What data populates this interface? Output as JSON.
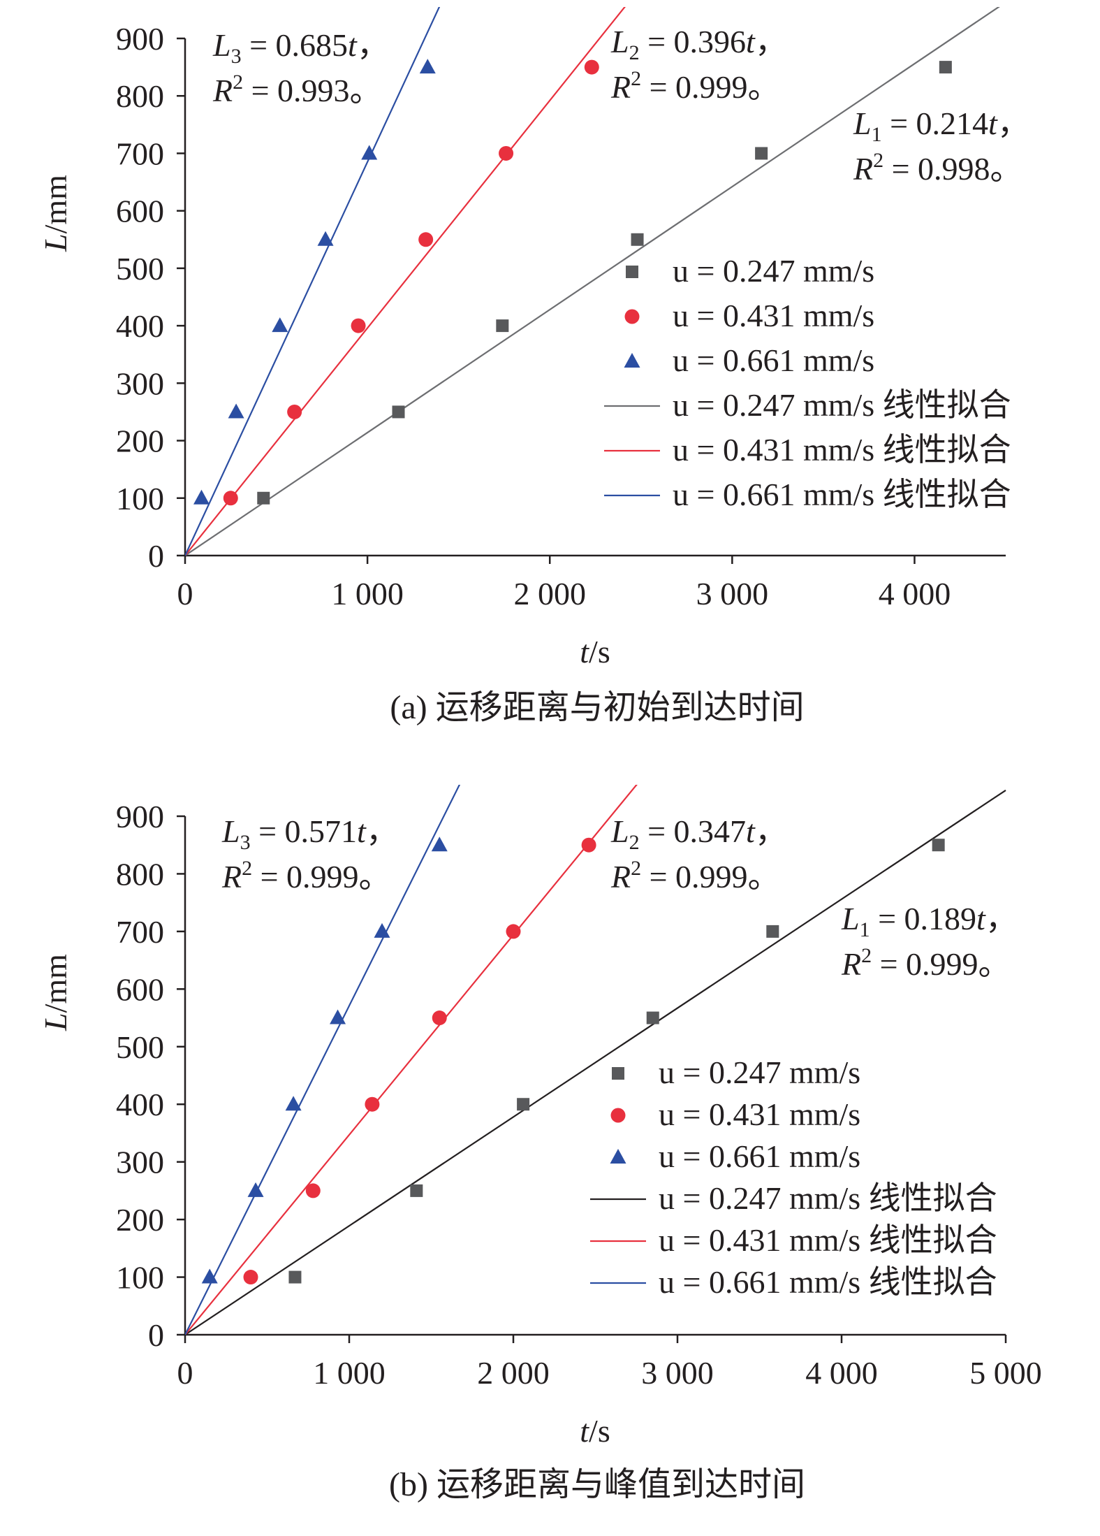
{
  "chart_data": [
    {
      "type": "scatter",
      "panel": "a",
      "caption": "(a) 运移距离与初始到达时间",
      "xlabel_var": "t",
      "xlabel_unit": "/s",
      "ylabel_var": "L",
      "ylabel_unit": "/mm",
      "xlim": [
        0,
        4500
      ],
      "ylim": [
        0,
        900
      ],
      "xticks": [
        0,
        1000,
        2000,
        3000,
        4000
      ],
      "xtick_labels": [
        "0",
        "1 000",
        "2 000",
        "3 000",
        "4 000"
      ],
      "yticks": [
        0,
        100,
        200,
        300,
        400,
        500,
        600,
        700,
        800,
        900
      ],
      "ytick_labels": [
        "0",
        "100",
        "200",
        "300",
        "400",
        "500",
        "600",
        "700",
        "800",
        "900"
      ],
      "grid": false,
      "legend_position": "center-right",
      "series": [
        {
          "name": "u = 0.247 mm/s",
          "marker": "square",
          "color": "#58595b",
          "fit_name": "u = 0.247 mm/s 线性拟合",
          "fit_color": "#6d6e71",
          "slope": 0.214,
          "x": [
            430,
            1170,
            1740,
            2480,
            3160,
            4170
          ],
          "y": [
            100,
            250,
            400,
            550,
            700,
            850
          ]
        },
        {
          "name": "u = 0.431 mm/s",
          "marker": "circle",
          "color": "#e8303e",
          "fit_name": "u = 0.431 mm/s 线性拟合",
          "fit_color": "#e8303e",
          "slope": 0.396,
          "x": [
            250,
            600,
            950,
            1320,
            1760,
            2230
          ],
          "y": [
            100,
            250,
            400,
            550,
            700,
            850
          ]
        },
        {
          "name": "u = 0.661 mm/s",
          "marker": "triangle",
          "color": "#2b4ea2",
          "fit_name": "u = 0.661 mm/s 线性拟合",
          "fit_color": "#2b4ea2",
          "slope": 0.685,
          "x": [
            90,
            280,
            520,
            770,
            1010,
            1330
          ],
          "y": [
            100,
            250,
            400,
            550,
            700,
            850
          ]
        }
      ],
      "annotations": [
        {
          "L": "L",
          "sub": "3",
          "eq": " = 0.685",
          "t": "t",
          "tail": "，",
          "R": "R",
          "sup": "2",
          "r2": " = 0.993。"
        },
        {
          "L": "L",
          "sub": "2",
          "eq": " = 0.396",
          "t": "t",
          "tail": "，",
          "R": "R",
          "sup": "2",
          "r2": " = 0.999。"
        },
        {
          "L": "L",
          "sub": "1",
          "eq": " = 0.214",
          "t": "t",
          "tail": "，",
          "R": "R",
          "sup": "2",
          "r2": " = 0.998。"
        }
      ]
    },
    {
      "type": "scatter",
      "panel": "b",
      "caption": "(b) 运移距离与峰值到达时间",
      "xlabel_var": "t",
      "xlabel_unit": "/s",
      "ylabel_var": "L",
      "ylabel_unit": "/mm",
      "xlim": [
        0,
        5000
      ],
      "ylim": [
        0,
        900
      ],
      "xticks": [
        0,
        1000,
        2000,
        3000,
        4000,
        5000
      ],
      "xtick_labels": [
        "0",
        "1 000",
        "2 000",
        "3 000",
        "4 000",
        "5 000"
      ],
      "yticks": [
        0,
        100,
        200,
        300,
        400,
        500,
        600,
        700,
        800,
        900
      ],
      "ytick_labels": [
        "0",
        "100",
        "200",
        "300",
        "400",
        "500",
        "600",
        "700",
        "800",
        "900"
      ],
      "grid": false,
      "legend_position": "center-right",
      "series": [
        {
          "name": "u = 0.247 mm/s",
          "marker": "square",
          "color": "#58595b",
          "fit_name": "u = 0.247 mm/s 线性拟合",
          "fit_color": "#231f20",
          "slope": 0.189,
          "x": [
            670,
            1410,
            2060,
            2850,
            3580,
            4590
          ],
          "y": [
            100,
            250,
            400,
            550,
            700,
            850
          ]
        },
        {
          "name": "u = 0.431 mm/s",
          "marker": "circle",
          "color": "#e8303e",
          "fit_name": "u = 0.431 mm/s 线性拟合",
          "fit_color": "#e8303e",
          "slope": 0.347,
          "x": [
            400,
            780,
            1140,
            1550,
            2000,
            2460
          ],
          "y": [
            100,
            250,
            400,
            550,
            700,
            850
          ]
        },
        {
          "name": "u = 0.661 mm/s",
          "marker": "triangle",
          "color": "#2b4ea2",
          "fit_name": "u = 0.661 mm/s 线性拟合",
          "fit_color": "#2b4ea2",
          "slope": 0.571,
          "x": [
            150,
            430,
            660,
            930,
            1200,
            1550
          ],
          "y": [
            100,
            250,
            400,
            550,
            700,
            850
          ]
        }
      ],
      "annotations": [
        {
          "L": "L",
          "sub": "3",
          "eq": " = 0.571",
          "t": "t",
          "tail": "，",
          "R": "R",
          "sup": "2",
          "r2": " = 0.999。"
        },
        {
          "L": "L",
          "sub": "2",
          "eq": " = 0.347",
          "t": "t",
          "tail": "，",
          "R": "R",
          "sup": "2",
          "r2": " = 0.999。"
        },
        {
          "L": "L",
          "sub": "1",
          "eq": " = 0.189",
          "t": "t",
          "tail": "，",
          "R": "R",
          "sup": "2",
          "r2": " = 0.999。"
        }
      ]
    }
  ]
}
